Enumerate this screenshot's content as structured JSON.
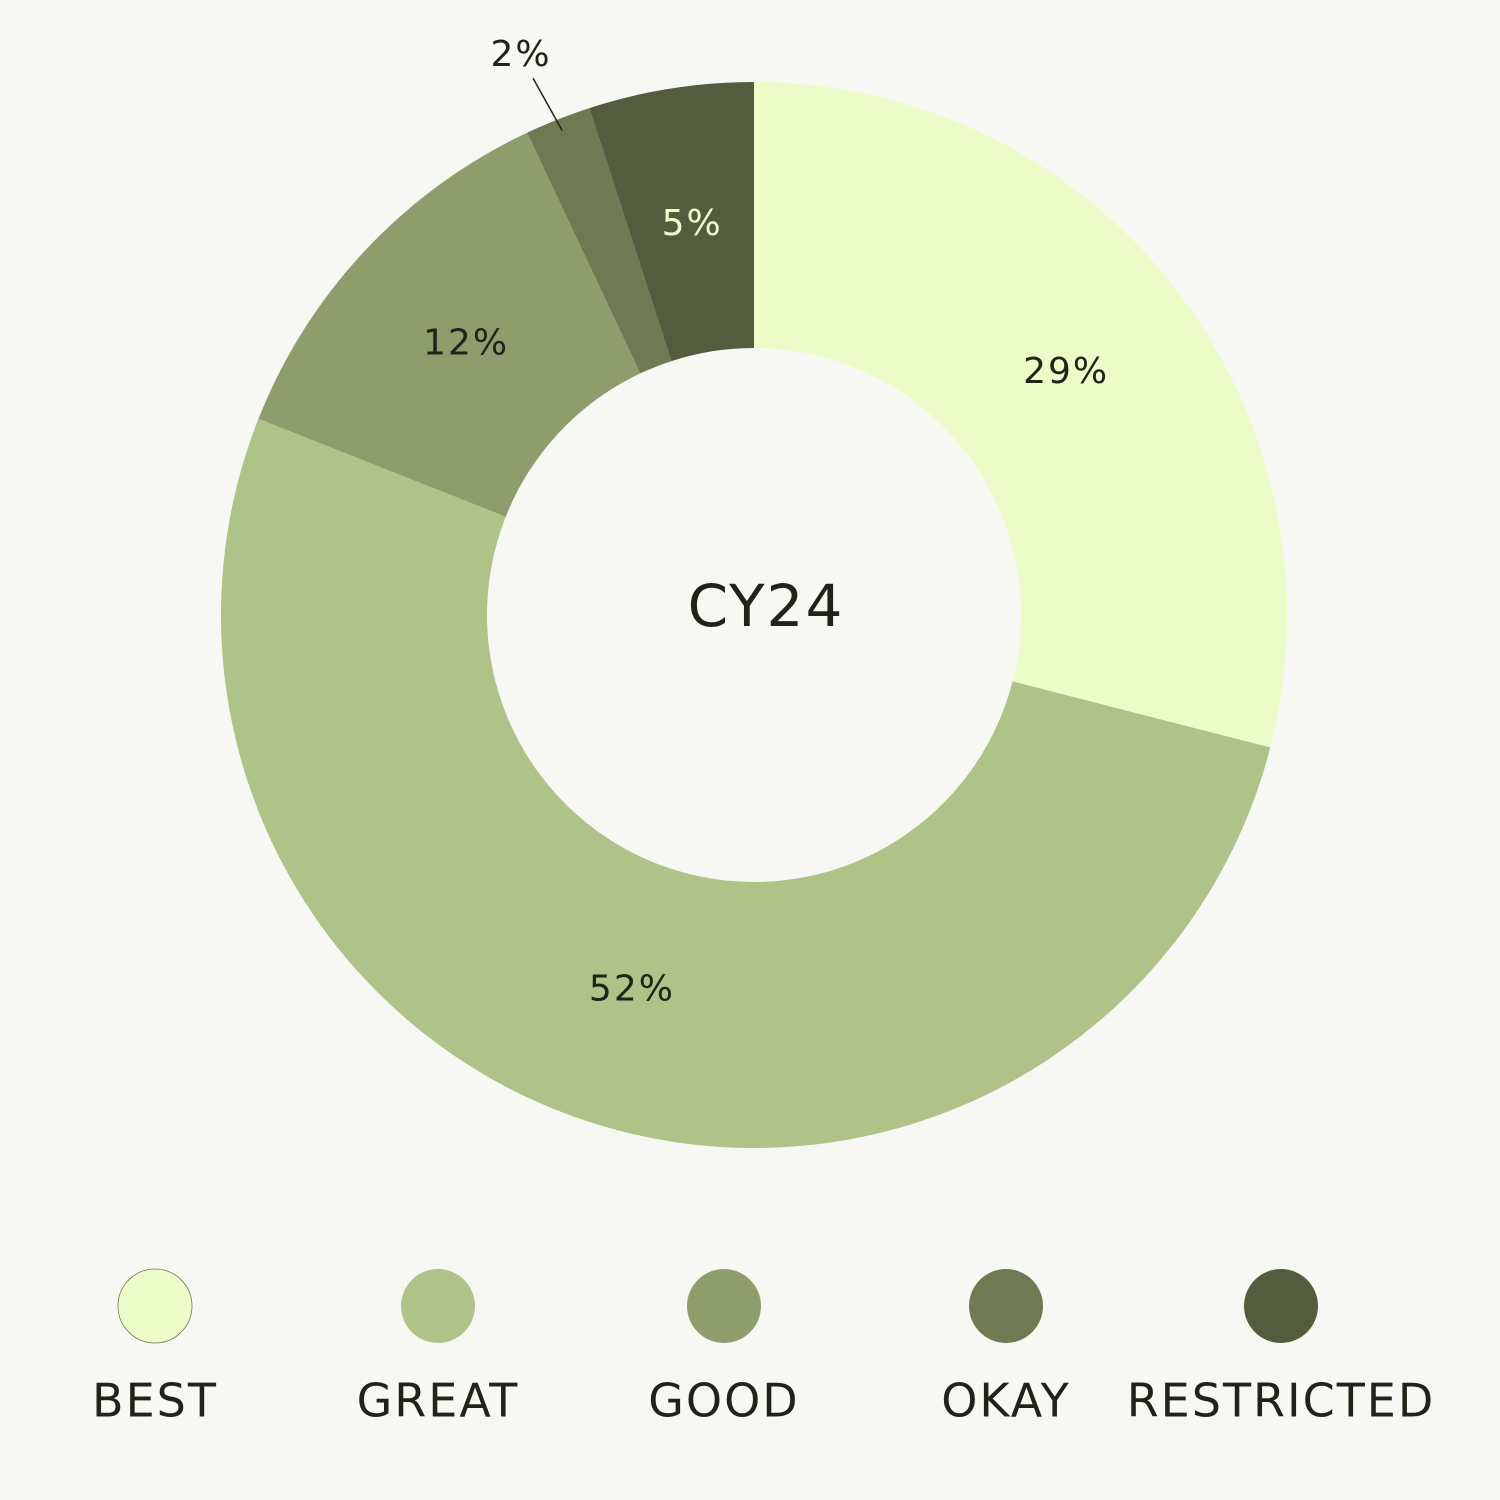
{
  "chart_data": {
    "type": "donut",
    "center_label": "CY24",
    "categories": [
      "BEST",
      "GREAT",
      "GOOD",
      "OKAY",
      "RESTRICTED"
    ],
    "values": [
      29,
      52,
      12,
      2,
      5
    ],
    "value_labels": [
      "29%",
      "52%",
      "12%",
      "2%",
      "5%"
    ],
    "colors": [
      "#edfbc8",
      "#afc288",
      "#8f9c6c",
      "#6f7a52",
      "#535c3d"
    ]
  }
}
